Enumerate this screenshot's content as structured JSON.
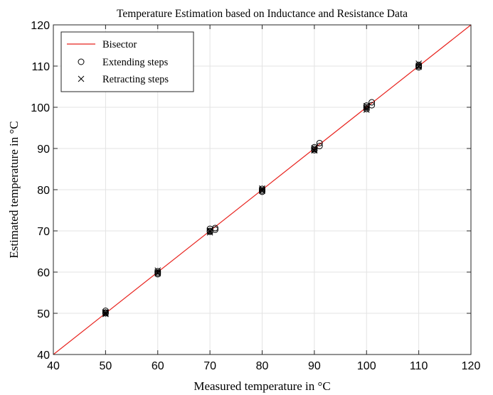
{
  "chart_data": {
    "type": "scatter",
    "title": "Temperature Estimation based on Inductance and Resistance Data",
    "xlabel": "Measured temperature in  °C",
    "ylabel": "Estimated temperature in  °C",
    "xlim": [
      40,
      120
    ],
    "ylim": [
      40,
      120
    ],
    "xticks": [
      "40",
      "50",
      "60",
      "70",
      "80",
      "90",
      "100",
      "110",
      "120"
    ],
    "yticks": [
      "40",
      "50",
      "60",
      "70",
      "80",
      "90",
      "100",
      "110",
      "120"
    ],
    "grid": true,
    "legend_position": "top-left",
    "series": [
      {
        "name": "Bisector",
        "kind": "line",
        "color": "#e8231e",
        "x": [
          40,
          120
        ],
        "y": [
          40,
          120
        ]
      },
      {
        "name": "Extending steps",
        "kind": "marker",
        "marker": "circle",
        "color": "#000000",
        "x": [
          50,
          50,
          50,
          60,
          60,
          60,
          70,
          70,
          70,
          71,
          71,
          80,
          80,
          80,
          90,
          90,
          90,
          91,
          91,
          100,
          100,
          100,
          101,
          101,
          110,
          110,
          110
        ],
        "y": [
          50.6,
          50.2,
          50.0,
          60.2,
          59.8,
          59.5,
          70.5,
          70.0,
          69.8,
          70.7,
          70.3,
          80.2,
          79.8,
          79.5,
          90.3,
          89.9,
          89.6,
          91.3,
          90.6,
          100.4,
          100.0,
          99.6,
          101.2,
          100.5,
          110.3,
          110.0,
          109.7
        ]
      },
      {
        "name": "Retracting steps",
        "kind": "marker",
        "marker": "x",
        "color": "#000000",
        "x": [
          50,
          50,
          50,
          60,
          60,
          60,
          70,
          70,
          70,
          80,
          80,
          80,
          90,
          90,
          90,
          100,
          100,
          100,
          110,
          110,
          110
        ],
        "y": [
          50.3,
          50.0,
          49.8,
          60.4,
          60.0,
          59.7,
          70.1,
          69.9,
          69.6,
          80.3,
          80.0,
          79.7,
          90.1,
          89.7,
          89.5,
          100.3,
          99.8,
          99.4,
          110.6,
          110.1,
          109.8
        ]
      }
    ]
  }
}
